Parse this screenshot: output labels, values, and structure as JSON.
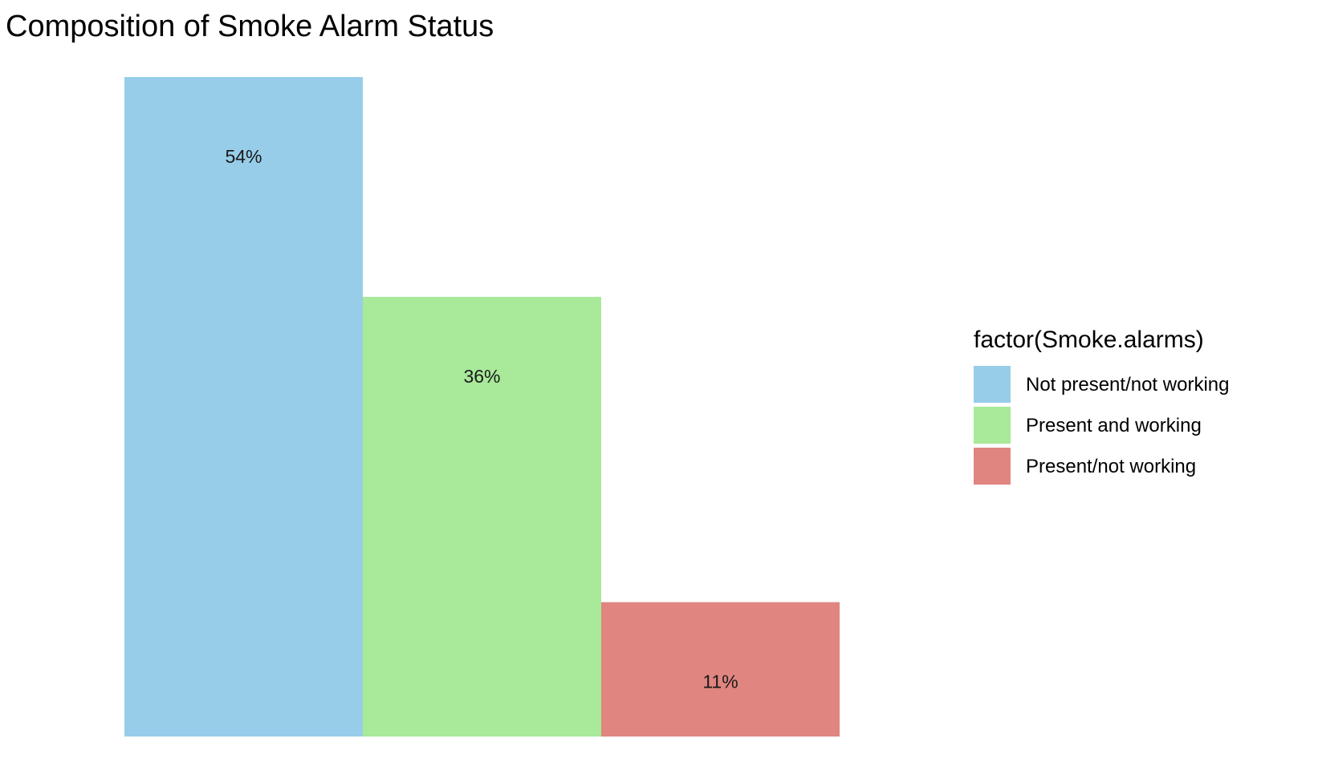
{
  "chart_data": {
    "type": "bar",
    "title": "Composition of Smoke Alarm Status",
    "xlabel": "",
    "ylabel": "",
    "categories": [
      "Not present/not working",
      "Present and working",
      "Present/not working"
    ],
    "values": [
      54,
      36,
      11
    ],
    "data_labels": [
      "54%",
      "36%",
      "11%"
    ],
    "colors": [
      "#97CDE9",
      "#A8E99A",
      "#E08580"
    ],
    "ylim": [
      0,
      54
    ],
    "grid": false,
    "legend": {
      "title": "factor(Smoke.alarms)",
      "position": "right",
      "entries": [
        "Not present/not working",
        "Present and working",
        "Present/not working"
      ]
    }
  }
}
